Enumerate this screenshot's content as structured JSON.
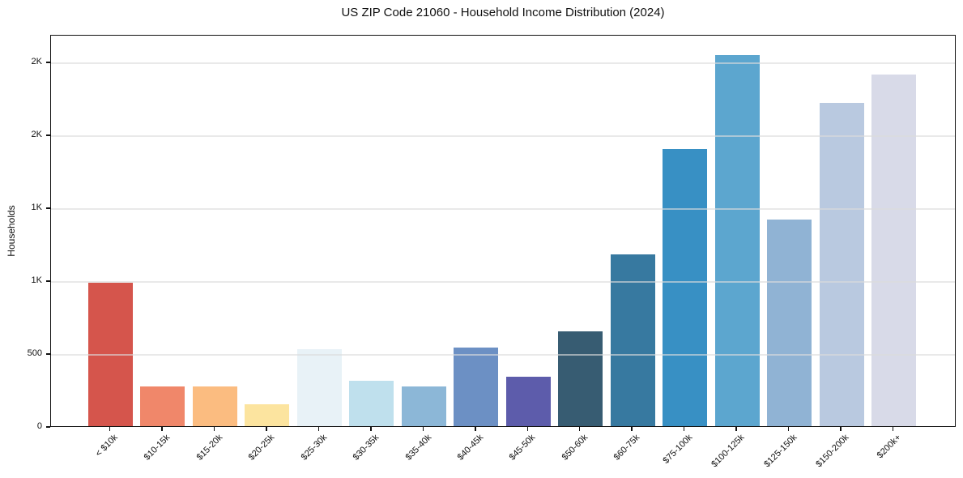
{
  "figure": {
    "background": "#ffffff",
    "axis_color": "#111111",
    "grid_color": "#dcdcdc"
  },
  "chart_data": {
    "type": "bar",
    "title": "US ZIP Code 21060 - Household Income Distribution (2024)",
    "xlabel": "",
    "ylabel": "Households",
    "categories": [
      "< $10k",
      "$10-15k",
      "$15-20k",
      "$20-25k",
      "$25-30k",
      "$30-35k",
      "$35-40k",
      "$40-45k",
      "$45-50k",
      "$50-60k",
      "$60-75k",
      "$75-100k",
      "$100-125k",
      "$125-150k",
      "$150-200k",
      "$200k+"
    ],
    "values": [
      982,
      272,
      274,
      150,
      528,
      312,
      273,
      540,
      340,
      652,
      1176,
      1900,
      2548,
      1415,
      2218,
      2412
    ],
    "bar_colors": [
      "#d5554c",
      "#f0876a",
      "#fbbc80",
      "#fce49f",
      "#e8f2f7",
      "#bfe0ed",
      "#8cb7d7",
      "#6c90c4",
      "#5d5cab",
      "#375c72",
      "#3779a0",
      "#3890c4",
      "#5ca6cf",
      "#90b3d4",
      "#b9c9e0",
      "#d8dae8"
    ],
    "ylim": [
      0,
      2690
    ],
    "yticks": {
      "values": [
        0,
        500,
        1000,
        1500,
        2000,
        2500
      ],
      "labels": [
        "0",
        "500",
        "1K",
        "1K",
        "2K",
        "2K"
      ]
    },
    "grid": "horizontal",
    "legend": "none"
  }
}
